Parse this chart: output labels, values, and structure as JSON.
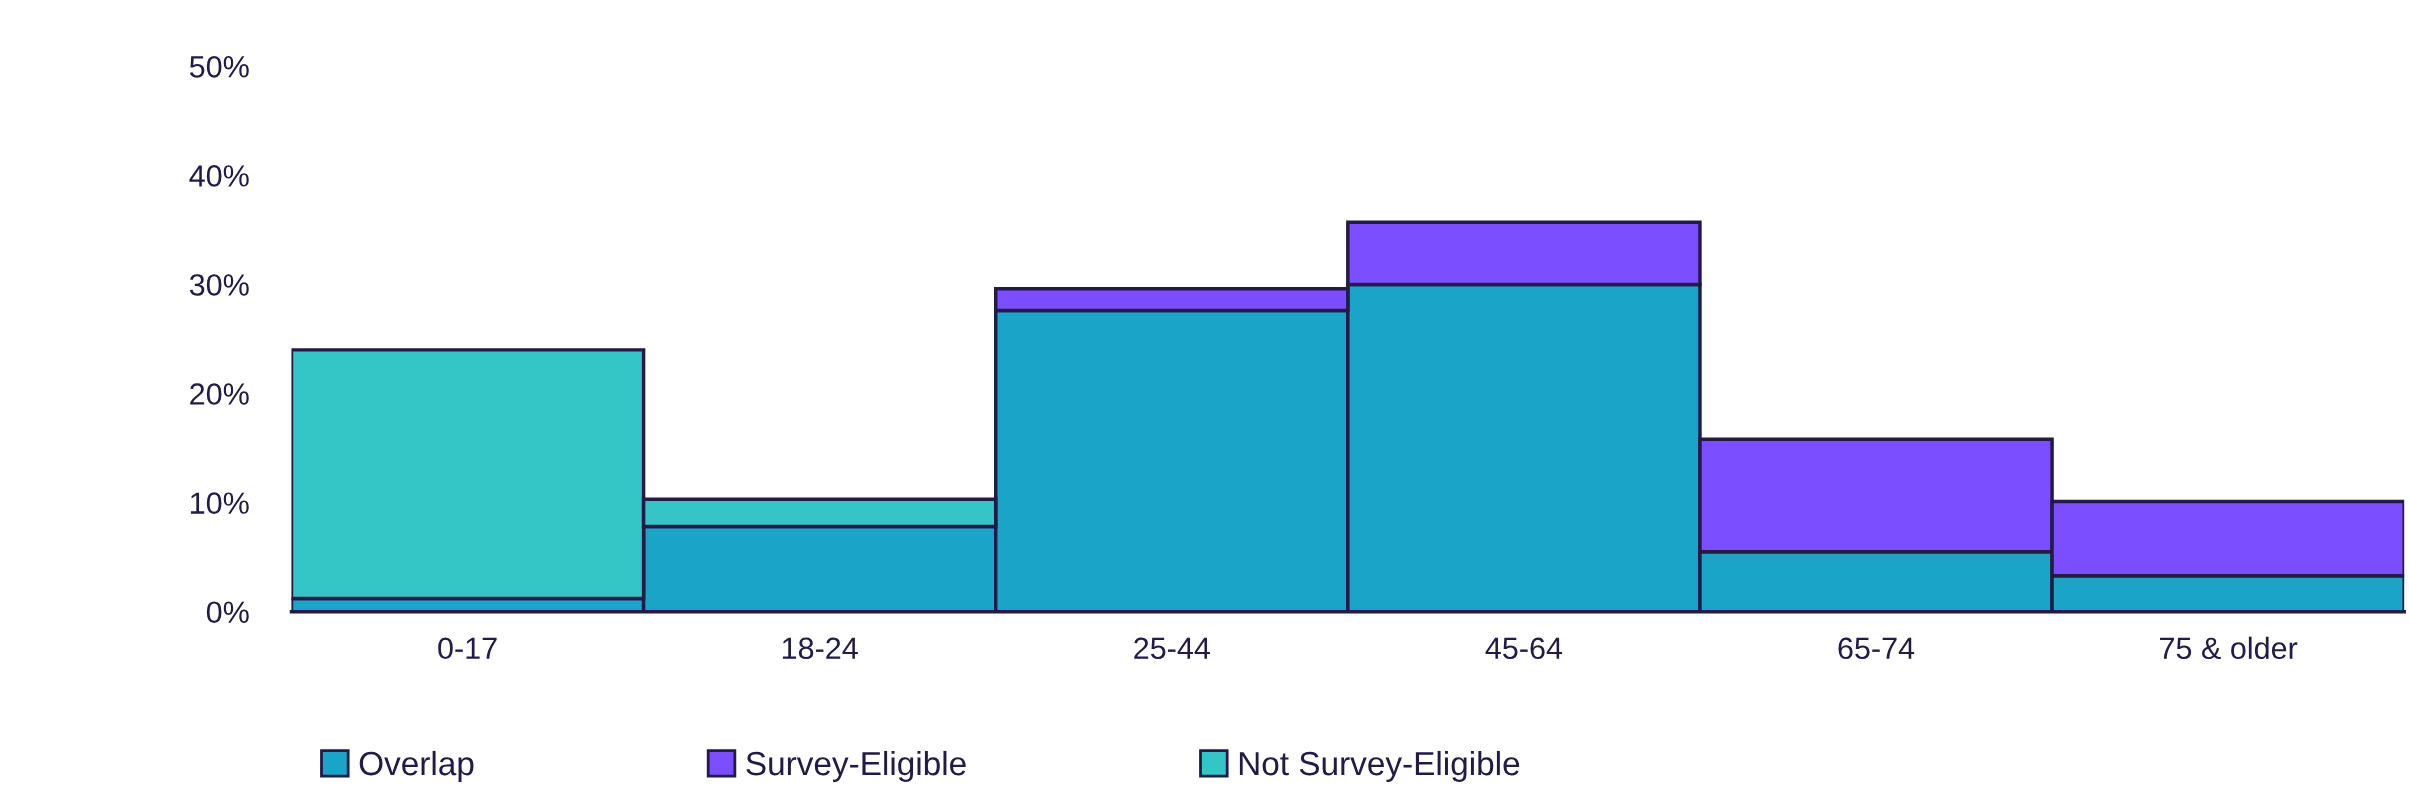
{
  "chart_data": {
    "type": "bar",
    "stacked": true,
    "categories": [
      "0-17",
      "18-24",
      "25-44",
      "45-64",
      "65-74",
      "75 & older"
    ],
    "series": [
      {
        "name": "Overlap",
        "color": "#1aa5c8",
        "values": [
          1.2,
          7.8,
          27.6,
          30.0,
          5.5,
          3.3
        ]
      },
      {
        "name": "Survey-Eligible",
        "color": "#7b4fff",
        "values": [
          null,
          null,
          2.0,
          5.7,
          10.3,
          6.8
        ]
      },
      {
        "name": "Not Survey-Eligible",
        "color": "#34c6c6",
        "values": [
          22.8,
          2.5,
          null,
          null,
          null,
          null
        ]
      }
    ],
    "ylim": [
      0,
      50
    ],
    "yticks": [
      {
        "value": 0,
        "label": "0%"
      },
      {
        "value": 10,
        "label": "10%"
      },
      {
        "value": 20,
        "label": "20%"
      },
      {
        "value": 30,
        "label": "30%"
      },
      {
        "value": 40,
        "label": "40%"
      },
      {
        "value": 50,
        "label": "50%"
      }
    ],
    "grid": false,
    "legend": "bottom"
  }
}
